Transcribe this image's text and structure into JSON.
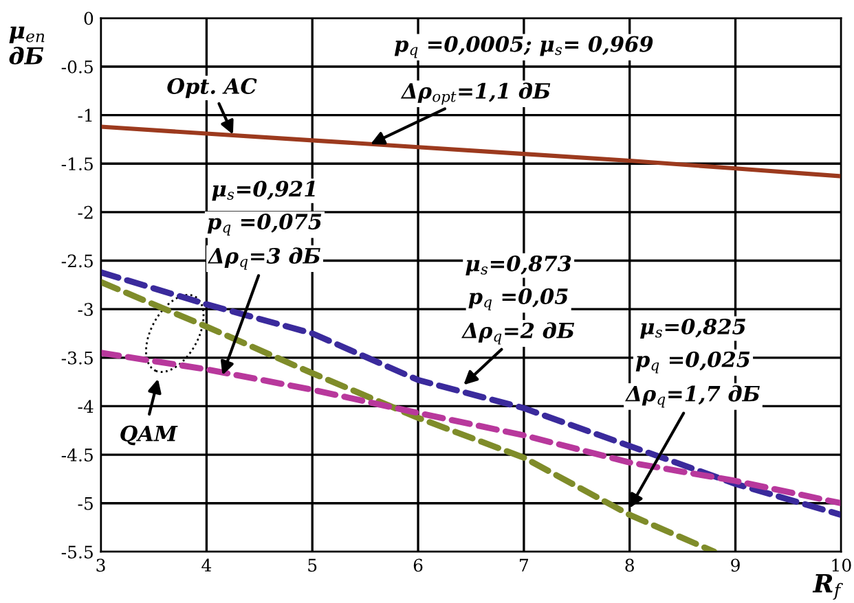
{
  "chart_data": {
    "type": "line",
    "xlabel": "R$_{f}$",
    "ylabel": "μ$_{en}$\nдБ",
    "x": [
      3,
      4,
      5,
      6,
      7,
      8,
      9,
      10
    ],
    "xlim": [
      3,
      10
    ],
    "ylim": [
      -5.5,
      0
    ],
    "xticks": [
      3,
      4,
      5,
      6,
      7,
      8,
      9,
      10
    ],
    "yticks": [
      -5.5,
      -5,
      -4.5,
      -4,
      -3.5,
      -3,
      -2.5,
      -2,
      -1.5,
      -1,
      -0.5,
      0
    ],
    "grid": true,
    "marker": "none",
    "series": [
      {
        "color": "#9c3a1e",
        "line_style": "solid",
        "values": [
          -1.12,
          -1.19,
          -1.26,
          -1.33,
          -1.4,
          -1.47,
          -1.55,
          -1.63
        ]
      },
      {
        "color": "#3a2a9c",
        "line_style": "dashed",
        "values": [
          -2.62,
          -2.95,
          -3.25,
          -3.73,
          -4.02,
          -4.41,
          -4.8,
          -5.12
        ]
      },
      {
        "color": "#7f8c2a",
        "line_style": "dashed",
        "x": [
          3,
          4,
          5,
          6,
          7,
          8,
          8.8
        ],
        "values": [
          -2.72,
          -3.18,
          -3.66,
          -4.12,
          -4.53,
          -5.12,
          -5.5
        ]
      },
      {
        "color": "#b8389c",
        "line_style": "dashed",
        "values": [
          -3.45,
          -3.62,
          -3.83,
          -4.07,
          -4.3,
          -4.58,
          -4.77,
          -5.0
        ]
      }
    ],
    "annotations": [
      {
        "text": "Opt. AC",
        "x": 4.25,
        "y": -1.2
      },
      "p$_{q}$ =0,0005; μ$_{s}$= 0,969",
      {
        "text": "Δρ$_{opt}$=1,1 дБ",
        "x": 5.55,
        "y": -1.3
      },
      "μ$_{s}$=0,921",
      "p$_{q}$ =0,075",
      {
        "text": "Δρ$_{q}$=3 дБ",
        "x": 4.15,
        "y": -3.68
      },
      "μ$_{s}$=0,873",
      "p$_{q}$ =0,05",
      {
        "text": "Δρ$_{q}$=2 дБ",
        "x": 6.43,
        "y": -3.78
      },
      "μ$_{s}$=0,825",
      "p$_{q}$ =0,025",
      {
        "text": "Δρ$_{q}$=1,7 дБ",
        "x": 8.0,
        "y": -5.05
      },
      "QAM"
    ]
  }
}
